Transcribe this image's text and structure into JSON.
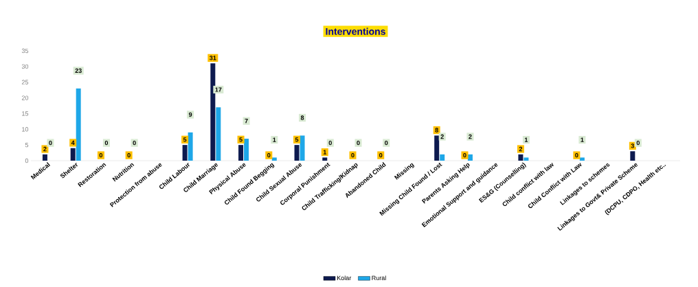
{
  "chart_data": {
    "type": "bar",
    "title": "Interventions",
    "categories": [
      "Medical",
      "Shelter",
      "Restoration",
      "Nutrition",
      "Protection from abuse",
      "Child Labour",
      "Child Marriage",
      "Physical Abuse",
      "Child Found Begging",
      "Child Sexual Abuse",
      "Corporal Punishment",
      "Child Trafficking/Kidnap",
      "Abandoned Child",
      "Missing",
      "Missing Child Found / Lost",
      "Parents Asking Help",
      "Emotional Support and guidance",
      "ES&G (Counselling)",
      "Child conflict with law",
      "Child Conflict with Law",
      "Linkages to schemes",
      "Linkages to Govt& Private Scheme",
      "(DCPU, CDPO, Health etc.."
    ],
    "series": [
      {
        "name": "Kolar",
        "color": "#0d1a4f",
        "values": [
          2,
          4,
          0,
          0,
          null,
          5,
          31,
          5,
          0,
          5,
          1,
          0,
          0,
          null,
          8,
          0,
          null,
          2,
          null,
          0,
          null,
          3,
          null
        ]
      },
      {
        "name": "Rural",
        "color": "#1ea7e8",
        "values": [
          0,
          23,
          0,
          0,
          null,
          9,
          17,
          7,
          1,
          8,
          0,
          0,
          0,
          null,
          2,
          2,
          null,
          1,
          null,
          1,
          null,
          0,
          null
        ]
      }
    ],
    "ylim": [
      0,
      35
    ],
    "yticks": [
      0,
      5,
      10,
      15,
      20,
      25,
      30,
      35
    ],
    "data_labels": true,
    "legend": "bottom",
    "grid": false
  }
}
